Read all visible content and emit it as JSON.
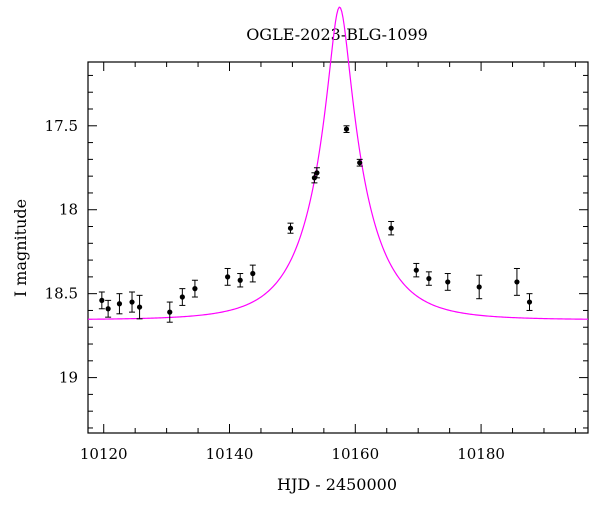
{
  "chart_data": {
    "type": "scatter",
    "title": "OGLE-2023-BLG-1099",
    "xlabel": "HJD - 2450000",
    "ylabel": "I magnitude",
    "xlim": [
      10117.5,
      10197
    ],
    "ylim": [
      19.33,
      17.12
    ],
    "y_inverted": true,
    "x_ticks": [
      10120,
      10140,
      10160,
      10180
    ],
    "x_tick_labels": [
      "10120",
      "10140",
      "10160",
      "10180"
    ],
    "y_ticks": [
      17.5,
      18,
      18.5,
      19
    ],
    "y_tick_labels": [
      "17.5",
      "18",
      "18.5",
      "19"
    ],
    "x_minor_step": 5,
    "y_minor_step": 0.1,
    "grid": false,
    "colors": {
      "data": "#000000",
      "model": "#ff00ff",
      "frame": "#000000"
    },
    "series": [
      {
        "type": "scatter-errorbar",
        "points": [
          {
            "x": 10119.7,
            "y": 18.54,
            "err": 0.05
          },
          {
            "x": 10120.7,
            "y": 18.59,
            "err": 0.05
          },
          {
            "x": 10122.5,
            "y": 18.56,
            "err": 0.06
          },
          {
            "x": 10124.5,
            "y": 18.55,
            "err": 0.06
          },
          {
            "x": 10125.7,
            "y": 18.58,
            "err": 0.07
          },
          {
            "x": 10130.5,
            "y": 18.61,
            "err": 0.06
          },
          {
            "x": 10132.5,
            "y": 18.52,
            "err": 0.05
          },
          {
            "x": 10134.5,
            "y": 18.47,
            "err": 0.05
          },
          {
            "x": 10139.7,
            "y": 18.4,
            "err": 0.05
          },
          {
            "x": 10141.7,
            "y": 18.42,
            "err": 0.04
          },
          {
            "x": 10143.7,
            "y": 18.38,
            "err": 0.05
          },
          {
            "x": 10149.7,
            "y": 18.11,
            "err": 0.03
          },
          {
            "x": 10153.5,
            "y": 17.81,
            "err": 0.03
          },
          {
            "x": 10153.9,
            "y": 17.78,
            "err": 0.03
          },
          {
            "x": 10158.6,
            "y": 17.52,
            "err": 0.02
          },
          {
            "x": 10160.7,
            "y": 17.72,
            "err": 0.02
          },
          {
            "x": 10165.7,
            "y": 18.11,
            "err": 0.04
          },
          {
            "x": 10169.7,
            "y": 18.36,
            "err": 0.04
          },
          {
            "x": 10171.7,
            "y": 18.41,
            "err": 0.04
          },
          {
            "x": 10174.7,
            "y": 18.43,
            "err": 0.05
          },
          {
            "x": 10179.7,
            "y": 18.46,
            "err": 0.07
          },
          {
            "x": 10185.7,
            "y": 18.43,
            "err": 0.08
          },
          {
            "x": 10187.7,
            "y": 18.55,
            "err": 0.05
          }
        ]
      },
      {
        "type": "model-curve",
        "model": {
          "baseline_mag": 18.656,
          "t0": 10157.5,
          "tE": 8.4,
          "u0": 0.182,
          "x_start": 10117.5,
          "x_end": 10197,
          "samples": 400
        }
      }
    ]
  }
}
